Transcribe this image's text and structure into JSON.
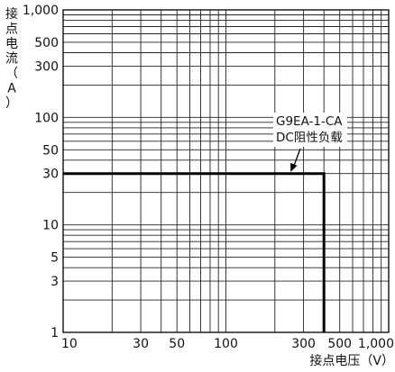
{
  "chart_data": {
    "type": "line",
    "xscale": "log",
    "yscale": "log",
    "xlim": [
      10,
      1000
    ],
    "ylim": [
      1,
      1000
    ],
    "grid": true,
    "xlabel": "接点电压（V）",
    "ylabel": [
      "接",
      "点",
      "电",
      "流",
      "（",
      "A",
      "）"
    ],
    "x_ticks": [
      10,
      20,
      30,
      40,
      50,
      60,
      70,
      80,
      90,
      100,
      200,
      300,
      400,
      500,
      600,
      700,
      800,
      900,
      1000
    ],
    "y_ticks": [
      1,
      2,
      3,
      4,
      5,
      6,
      7,
      8,
      9,
      10,
      20,
      30,
      40,
      50,
      60,
      70,
      80,
      90,
      100,
      200,
      300,
      400,
      500,
      600,
      700,
      800,
      900,
      1000
    ],
    "x_tick_labels": [
      {
        "value": 10,
        "label": "10"
      },
      {
        "value": 30,
        "label": "30"
      },
      {
        "value": 50,
        "label": "50"
      },
      {
        "value": 100,
        "label": "100"
      },
      {
        "value": 300,
        "label": "300"
      },
      {
        "value": 500,
        "label": "500"
      },
      {
        "value": 1000,
        "label": "1,000"
      }
    ],
    "y_tick_labels": [
      {
        "value": 1,
        "label": "1"
      },
      {
        "value": 3,
        "label": "3"
      },
      {
        "value": 5,
        "label": "5"
      },
      {
        "value": 10,
        "label": "10"
      },
      {
        "value": 30,
        "label": "30"
      },
      {
        "value": 50,
        "label": "50"
      },
      {
        "value": 100,
        "label": "100"
      },
      {
        "value": 300,
        "label": "300"
      },
      {
        "value": 500,
        "label": "500"
      },
      {
        "value": 1000,
        "label": "1,000"
      }
    ],
    "series": [
      {
        "x": [
          10,
          400,
          400
        ],
        "y": [
          30,
          30,
          1
        ]
      }
    ],
    "annotation": {
      "lines": [
        "G9EA-1-CA",
        "DC阻性负载"
      ],
      "points_to": {
        "x": 250,
        "y": 30
      }
    }
  }
}
